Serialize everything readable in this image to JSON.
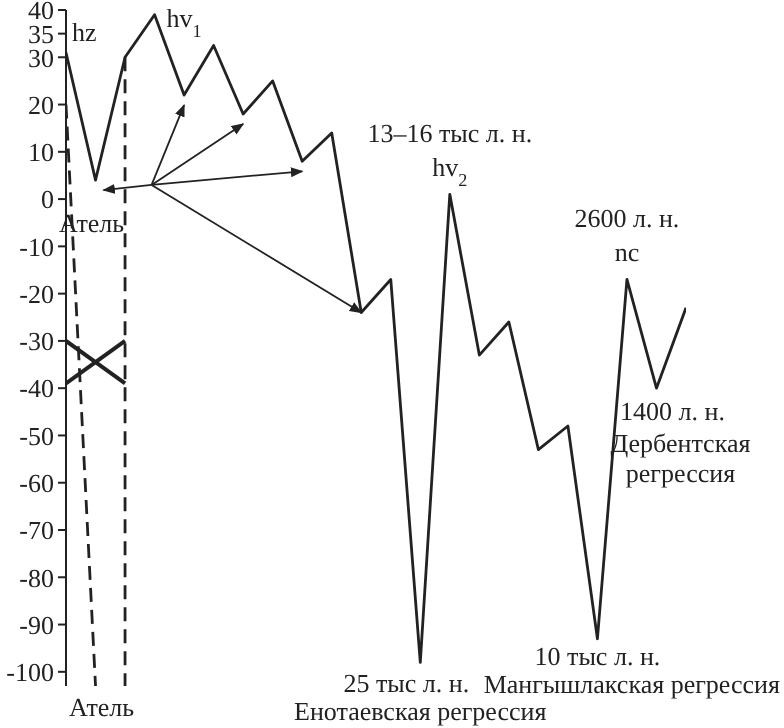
{
  "chart_data": {
    "type": "line",
    "tick_labels": "y",
    "ylim": [
      -103,
      40
    ],
    "yticks": [
      40,
      35,
      30,
      20,
      10,
      0,
      -10,
      -20,
      -30,
      -40,
      -50,
      -60,
      -70,
      -80,
      -90,
      -100
    ],
    "marker": "none",
    "categories": [
      null,
      null,
      null,
      null,
      null,
      null,
      null,
      null,
      null,
      null,
      null,
      null,
      null,
      null,
      null,
      null,
      null,
      null,
      null,
      null,
      null,
      null
    ],
    "series": [
      {
        "color": "#222222",
        "line_style": "solid",
        "values": [
          31,
          4,
          30,
          39,
          22,
          32.5,
          18,
          25,
          8,
          14,
          -24,
          -17,
          -98,
          1,
          -33,
          -26,
          -53,
          -48,
          -93,
          -17,
          -40,
          -23
        ]
      },
      {
        "color": "#222222",
        "line_style": "dashed",
        "values": [
          20,
          -103,
          null,
          null,
          null,
          null,
          null,
          null,
          null,
          null,
          null,
          null,
          null,
          null,
          null,
          null,
          null,
          null,
          null,
          null,
          null,
          null
        ]
      },
      {
        "color": "#222222",
        "line_style": "solid",
        "values": [
          -30,
          -34.5,
          -39,
          null,
          null,
          null,
          null,
          null,
          null,
          null,
          null,
          null,
          null,
          null,
          null,
          null,
          null,
          null,
          null,
          null,
          null,
          null
        ]
      },
      {
        "color": "#222222",
        "line_style": "solid",
        "values": [
          -39,
          -34.5,
          -30,
          null,
          null,
          null,
          null,
          null,
          null,
          null,
          null,
          null,
          null,
          null,
          null,
          null,
          null,
          null,
          null,
          null,
          null,
          null
        ]
      }
    ],
    "annotations": [
      "hz",
      "Атель",
      "hv$_{1}$",
      "13–16 тыс л. н.",
      "hv$_{2}$",
      "25 тыс л. н.",
      "Енотаевская регрессия",
      "10 тыс л. н.",
      "Мангышлакская регрессия",
      "2600 л. н.",
      "nc",
      "1400 л. н.",
      "Дербентская",
      "регрессия",
      "Атель"
    ]
  }
}
